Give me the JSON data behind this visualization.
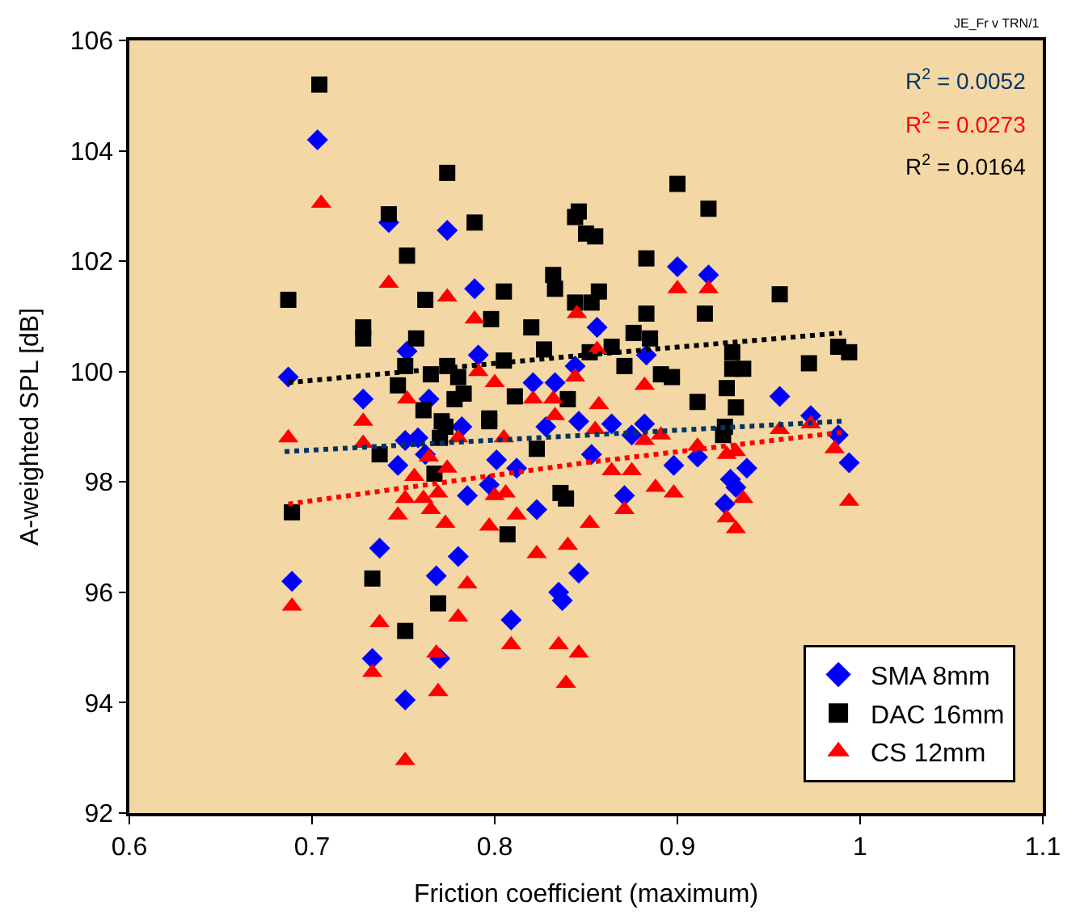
{
  "chart_data": {
    "type": "scatter",
    "xlabel": "Friction coefficient (maximum)",
    "ylabel": "A-weighted SPL [dB]",
    "xlim": [
      0.6,
      1.1
    ],
    "xticks": [
      0.6,
      0.7,
      0.8,
      0.9,
      1,
      1.1
    ],
    "ylim": [
      92,
      106
    ],
    "yticks": [
      92,
      94,
      96,
      98,
      100,
      102,
      104,
      106
    ],
    "grid": false,
    "legend": "bottom right",
    "annotations": [
      "JE_Fr v TRN/1",
      "R$^{2}$ = 0.0052",
      "R$^{2}$ = 0.0273",
      "R$^{2}$ = 0.0164"
    ],
    "series": [
      {
        "name": "SMA 8mm",
        "color": "#0000ff",
        "marker": "diamond",
        "x": [
          0.703,
          0.742,
          0.774,
          0.789,
          0.791,
          0.752,
          0.687,
          0.728,
          0.764,
          0.821,
          0.833,
          0.844,
          0.846,
          0.751,
          0.747,
          0.785,
          0.737,
          0.689,
          0.768,
          0.78,
          0.733,
          0.751,
          0.801,
          0.812,
          0.823,
          0.846,
          0.837,
          0.835,
          0.809,
          0.77,
          0.797,
          0.758,
          0.762,
          0.782,
          0.828,
          0.864,
          0.853,
          0.882,
          0.875,
          0.898,
          0.911,
          0.871,
          0.929,
          0.932,
          0.938,
          0.926,
          0.988,
          0.994,
          0.973,
          0.956,
          0.9,
          0.917,
          0.856,
          0.883
        ],
        "values": [
          104.2,
          102.7,
          102.56,
          101.5,
          100.3,
          100.37,
          99.9,
          99.5,
          99.5,
          99.8,
          99.8,
          100.1,
          99.1,
          98.75,
          98.3,
          97.75,
          96.8,
          96.2,
          96.3,
          96.65,
          94.8,
          94.05,
          98.4,
          98.25,
          97.5,
          96.35,
          95.85,
          96.0,
          95.5,
          94.8,
          97.95,
          98.8,
          98.5,
          99.0,
          99.0,
          99.05,
          98.5,
          99.05,
          98.85,
          98.3,
          98.45,
          97.75,
          98.05,
          97.9,
          98.25,
          97.6,
          98.85,
          98.35,
          99.2,
          99.55,
          101.9,
          101.75,
          100.8,
          100.3
        ]
      },
      {
        "name": "DAC 16mm",
        "color": "#000000",
        "marker": "square",
        "x": [
          0.704,
          0.774,
          0.742,
          0.789,
          0.752,
          0.687,
          0.762,
          0.805,
          0.728,
          0.728,
          0.757,
          0.798,
          0.82,
          0.832,
          0.833,
          0.844,
          0.846,
          0.844,
          0.85,
          0.751,
          0.747,
          0.765,
          0.774,
          0.78,
          0.805,
          0.827,
          0.778,
          0.783,
          0.811,
          0.761,
          0.771,
          0.797,
          0.84,
          0.737,
          0.689,
          0.733,
          0.769,
          0.751,
          0.773,
          0.797,
          0.823,
          0.807,
          0.836,
          0.839,
          0.77,
          0.767,
          0.9,
          0.917,
          0.855,
          0.883,
          0.857,
          0.853,
          0.883,
          0.915,
          0.956,
          0.876,
          0.885,
          0.864,
          0.852,
          0.871,
          0.891,
          0.897,
          0.911,
          0.93,
          0.93,
          0.936,
          0.927,
          0.932,
          0.972,
          0.988,
          0.994,
          0.926,
          0.925
        ],
        "values": [
          105.2,
          103.6,
          102.85,
          102.7,
          102.1,
          101.3,
          101.3,
          101.45,
          100.8,
          100.6,
          100.6,
          100.95,
          100.8,
          101.75,
          101.5,
          101.25,
          102.9,
          102.8,
          102.5,
          100.1,
          99.75,
          99.95,
          100.1,
          99.9,
          100.2,
          100.4,
          99.5,
          99.6,
          99.55,
          99.3,
          99.1,
          99.15,
          99.5,
          98.5,
          97.45,
          96.25,
          95.8,
          95.3,
          99.0,
          99.1,
          98.6,
          97.05,
          97.8,
          97.7,
          98.8,
          98.15,
          103.4,
          102.95,
          102.45,
          102.05,
          101.45,
          101.25,
          101.05,
          101.05,
          101.4,
          100.7,
          100.6,
          100.45,
          100.35,
          100.1,
          99.95,
          99.9,
          99.45,
          100.35,
          100.05,
          100.05,
          99.7,
          99.35,
          100.15,
          100.45,
          100.35,
          99.0,
          98.85
        ]
      },
      {
        "name": "CS 12mm",
        "color": "#ff0000",
        "marker": "triangle",
        "x": [
          0.705,
          0.742,
          0.774,
          0.789,
          0.845,
          0.791,
          0.8,
          0.844,
          0.821,
          0.832,
          0.833,
          0.752,
          0.728,
          0.687,
          0.728,
          0.764,
          0.78,
          0.805,
          0.756,
          0.774,
          0.751,
          0.761,
          0.769,
          0.747,
          0.765,
          0.773,
          0.8,
          0.806,
          0.812,
          0.797,
          0.823,
          0.84,
          0.852,
          0.785,
          0.78,
          0.689,
          0.737,
          0.733,
          0.768,
          0.769,
          0.809,
          0.835,
          0.846,
          0.839,
          0.751,
          0.855,
          0.864,
          0.875,
          0.888,
          0.898,
          0.871,
          0.911,
          0.927,
          0.932,
          0.936,
          0.927,
          0.932,
          0.994,
          0.986,
          0.973,
          0.956,
          0.891,
          0.882,
          0.9,
          0.917,
          0.856,
          0.882,
          0.857
        ],
        "values": [
          103.05,
          101.6,
          101.35,
          100.95,
          101.05,
          100.0,
          99.8,
          99.9,
          99.5,
          99.5,
          99.2,
          99.5,
          99.1,
          98.8,
          98.7,
          98.45,
          98.8,
          98.8,
          98.1,
          98.25,
          97.7,
          97.7,
          97.8,
          97.4,
          97.5,
          97.25,
          97.75,
          97.8,
          97.4,
          97.2,
          96.7,
          96.85,
          97.25,
          96.15,
          95.55,
          95.75,
          95.45,
          94.55,
          94.9,
          94.2,
          95.05,
          95.05,
          94.9,
          94.35,
          92.95,
          98.95,
          98.2,
          98.2,
          97.9,
          97.8,
          97.5,
          98.65,
          98.5,
          98.55,
          97.7,
          97.35,
          97.15,
          97.65,
          98.6,
          99.05,
          98.95,
          98.85,
          98.75,
          101.5,
          101.5,
          100.4,
          99.75,
          99.4
        ]
      },
      {
        "type": "line",
        "color": "#003366",
        "line_style": "dotted",
        "marker": "none",
        "x": [
          0.685,
          0.99
        ],
        "values": [
          98.55,
          99.1
        ]
      },
      {
        "type": "line",
        "color": "#ff0000",
        "line_style": "dotted",
        "marker": "none",
        "x": [
          0.687,
          0.85,
          0.99
        ],
        "values": [
          97.6,
          98.35,
          98.9
        ]
      },
      {
        "type": "line",
        "color": "#000000",
        "line_style": "dotted",
        "marker": "none",
        "x": [
          0.687,
          0.85,
          0.99
        ],
        "values": [
          99.8,
          100.3,
          100.7
        ]
      }
    ]
  }
}
